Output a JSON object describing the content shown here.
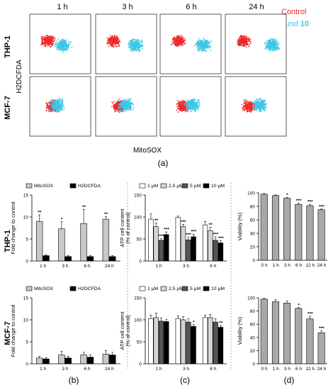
{
  "panel_labels": {
    "a": "(a)",
    "b": "(b)",
    "c": "(c)",
    "d": "(d)"
  },
  "flow": {
    "time_labels": [
      "1 h",
      "3 h",
      "6 h",
      "24 h"
    ],
    "row_labels": [
      "THP-1",
      "MCF-7"
    ],
    "y_axis_label": "H2DCFDA",
    "x_axis_label": "MitoSOX",
    "legend": {
      "control": "Control",
      "compound_prefix": "Compound ",
      "compound_number": "10"
    },
    "colors": {
      "control": "#ee2a2a",
      "compound": "#3cc8e6"
    }
  },
  "chart_data": [
    {
      "type": "bar",
      "panel": "b-THP-1",
      "row_label": "THP-1",
      "categories": [
        "1 h",
        "3 h",
        "6 h",
        "24 h"
      ],
      "series": [
        {
          "name": "MitoSOX",
          "values": [
            9.0,
            7.3,
            8.5,
            9.5
          ],
          "errors": [
            1.5,
            1.6,
            3.2,
            0.6
          ],
          "sig": [
            "**",
            "*",
            "**",
            "**"
          ],
          "color": "#c8c8c8"
        },
        {
          "name": "H2DCFDA",
          "values": [
            1.2,
            1.0,
            1.0,
            1.0
          ],
          "errors": [
            0.2,
            0.2,
            0.2,
            0.2
          ],
          "sig": [
            "",
            "",
            "",
            ""
          ],
          "color": "#000000"
        }
      ],
      "ylabel": "Fold change to control",
      "ylim": [
        0,
        15
      ],
      "yticks": [
        0,
        5,
        10,
        15
      ]
    },
    {
      "type": "bar",
      "panel": "b-MCF-7",
      "row_label": "MCF-7",
      "categories": [
        "1 h",
        "3 h",
        "6 h",
        "24 h"
      ],
      "series": [
        {
          "name": "MitoSOX",
          "values": [
            1.3,
            2.0,
            2.0,
            2.2
          ],
          "errors": [
            0.4,
            0.8,
            0.6,
            0.8
          ],
          "sig": [
            "",
            "",
            "",
            ""
          ],
          "color": "#c8c8c8"
        },
        {
          "name": "H2DCFDA",
          "values": [
            1.1,
            1.3,
            1.5,
            2.0
          ],
          "errors": [
            0.3,
            0.4,
            0.5,
            0.6
          ],
          "sig": [
            "",
            "",
            "",
            ""
          ],
          "color": "#000000"
        }
      ],
      "ylabel": "Fold change to control",
      "ylim": [
        0,
        15
      ],
      "yticks": [
        0,
        5,
        10,
        15
      ]
    },
    {
      "type": "bar",
      "panel": "c-THP-1",
      "categories": [
        "1 h",
        "3 h",
        "6 h"
      ],
      "series": [
        {
          "name": "1 µM",
          "values": [
            95,
            99,
            82
          ],
          "errors": [
            12,
            3,
            8
          ],
          "sig": [
            "",
            "",
            ""
          ],
          "color": "#ffffff"
        },
        {
          "name": "2,5 µM",
          "values": [
            78,
            78,
            69
          ],
          "errors": [
            8,
            5,
            8
          ],
          "sig": [
            "**",
            "***",
            "**"
          ],
          "color": "#d4d4d4"
        },
        {
          "name": "5 µM",
          "values": [
            47,
            48,
            47
          ],
          "errors": [
            4,
            6,
            8
          ],
          "sig": [
            "***",
            "***",
            "***"
          ],
          "color": "#555555"
        },
        {
          "name": "10 µM",
          "values": [
            60,
            55,
            41
          ],
          "errors": [
            6,
            6,
            5
          ],
          "sig": [
            "***",
            "***",
            "***"
          ],
          "color": "#000000"
        }
      ],
      "ylabel": "ATP cell content (% of control)",
      "ylim": [
        0,
        150
      ],
      "yticks": [
        0,
        50,
        100,
        150
      ]
    },
    {
      "type": "bar",
      "panel": "c-MCF-7",
      "categories": [
        "1 h",
        "3 h",
        "6 h"
      ],
      "series": [
        {
          "name": "1 µM",
          "values": [
            103,
            103,
            105
          ],
          "errors": [
            8,
            6,
            6
          ],
          "sig": [
            "",
            "",
            ""
          ],
          "color": "#ffffff"
        },
        {
          "name": "2,5 µM",
          "values": [
            105,
            100,
            105
          ],
          "errors": [
            10,
            7,
            7
          ],
          "sig": [
            "",
            "",
            ""
          ],
          "color": "#d4d4d4"
        },
        {
          "name": "5 µM",
          "values": [
            97,
            95,
            95
          ],
          "errors": [
            7,
            7,
            8
          ],
          "sig": [
            "",
            "",
            ""
          ],
          "color": "#555555"
        },
        {
          "name": "10 µM",
          "values": [
            96,
            85,
            83
          ],
          "errors": [
            5,
            4,
            4
          ],
          "sig": [
            "",
            "*",
            "**"
          ],
          "color": "#000000"
        }
      ],
      "ylabel": "ATP cell content (% of control)",
      "ylim": [
        0,
        150
      ],
      "yticks": [
        0,
        50,
        100,
        150
      ]
    },
    {
      "type": "bar",
      "panel": "d-THP-1",
      "categories": [
        "0 h",
        "1 h",
        "3 h",
        "6 h",
        "12 h",
        "24 h"
      ],
      "series": [
        {
          "name": "Viability",
          "values": [
            98,
            96,
            92,
            83,
            81,
            75
          ],
          "errors": [
            1,
            1,
            1,
            2,
            2,
            1
          ],
          "sig": [
            "",
            "",
            "*",
            "***",
            "***",
            "***"
          ],
          "color": "#a8a8a8"
        }
      ],
      "ylabel": "Viability (%)",
      "ylim": [
        0,
        100
      ],
      "yticks": [
        0,
        20,
        40,
        60,
        80,
        100
      ]
    },
    {
      "type": "bar",
      "panel": "d-MCF-7",
      "categories": [
        "0 h",
        "1 h",
        "3 h",
        "6 h",
        "12 h",
        "24 h"
      ],
      "series": [
        {
          "name": "Viability",
          "values": [
            98,
            94,
            92,
            84,
            68,
            47
          ],
          "errors": [
            1,
            3,
            3,
            1,
            4,
            3
          ],
          "sig": [
            "",
            "",
            "",
            "*",
            "***",
            "***"
          ],
          "color": "#a8a8a8"
        }
      ],
      "ylabel": "Viability (%)",
      "ylim": [
        0,
        100
      ],
      "yticks": [
        0,
        20,
        40,
        60,
        80,
        100
      ]
    }
  ]
}
